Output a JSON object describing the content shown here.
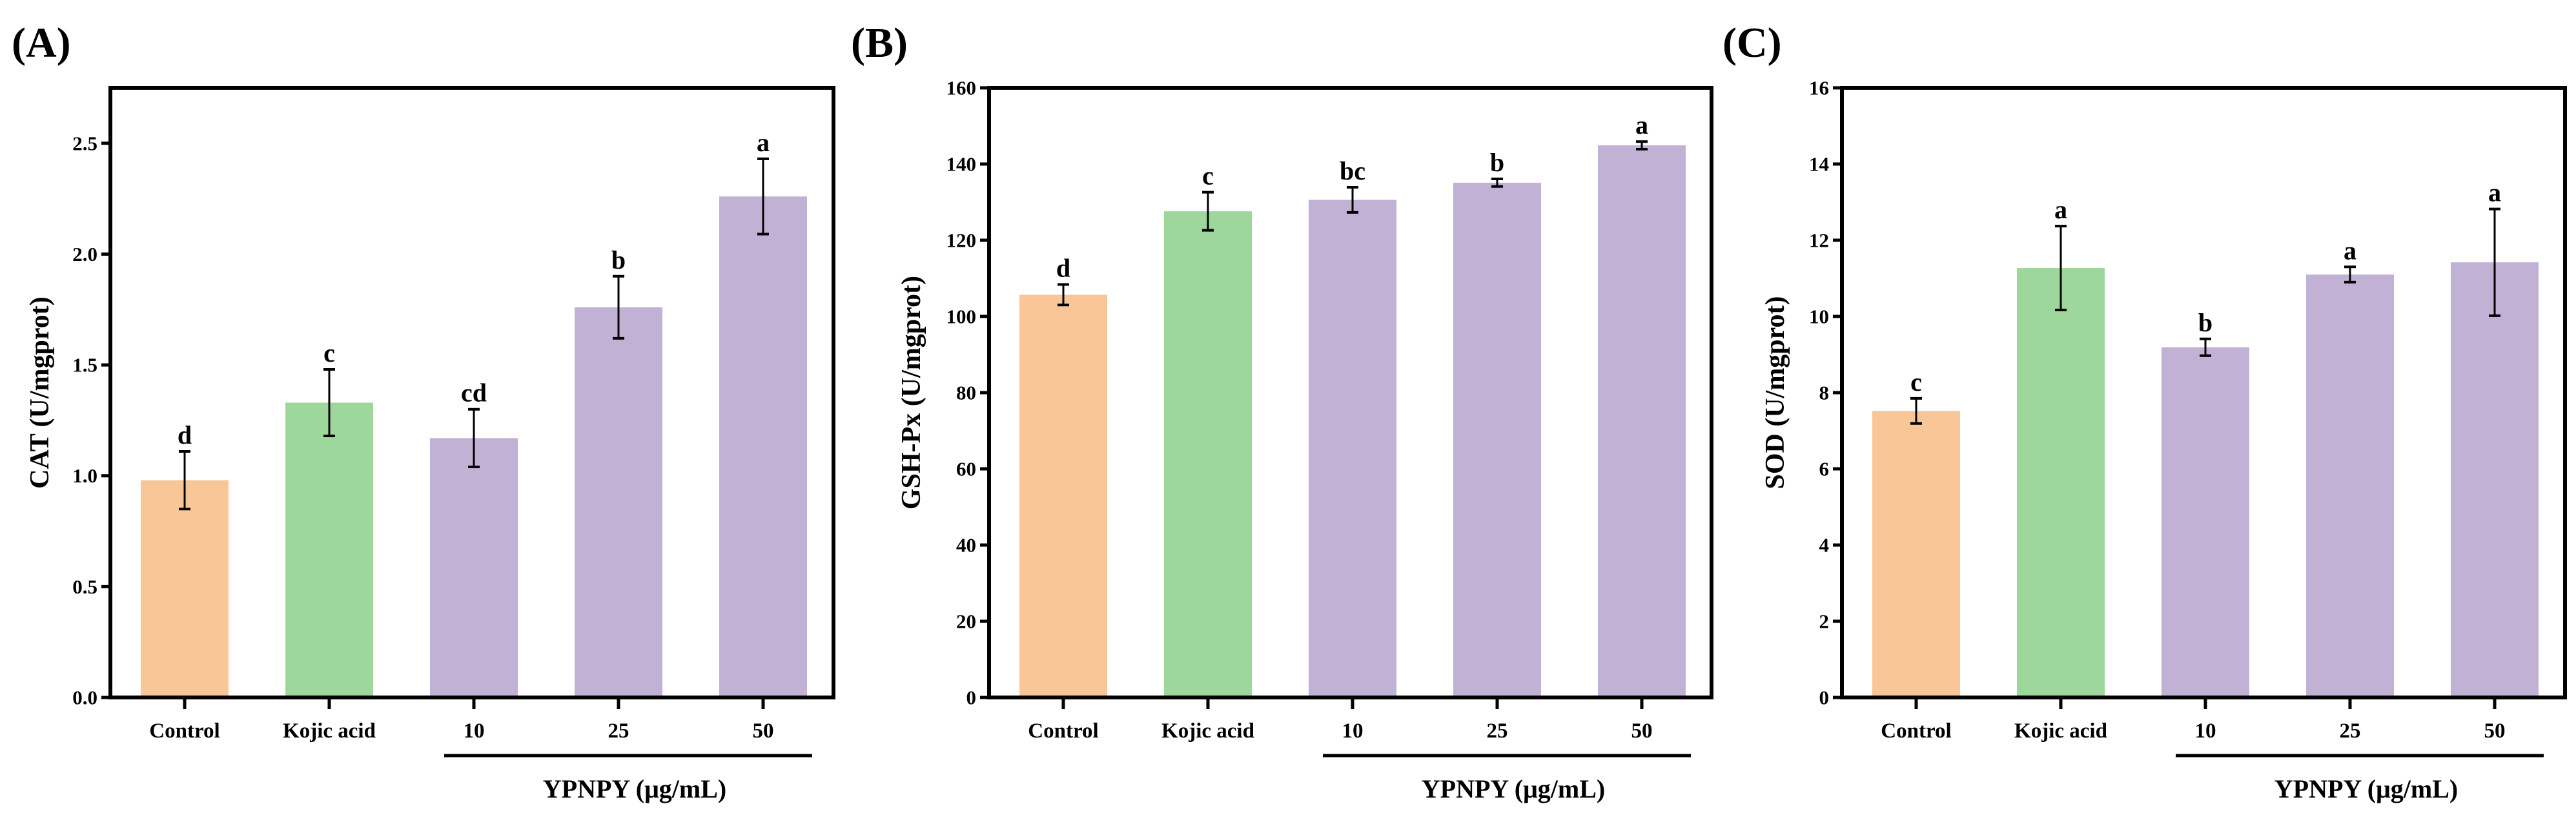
{
  "colors": {
    "control": "#F9C797",
    "kojic": "#9ED79B",
    "ypnpy": "#C1B1D5",
    "axis": "#000000"
  },
  "chart_data": [
    {
      "type": "bar",
      "panel_label": "(A)",
      "ylabel": "CAT (U/mgprot)",
      "xlabel": "",
      "ylim": [
        0,
        2.75
      ],
      "yticks": [
        "0.0",
        "0.5",
        "1.0",
        "1.5",
        "2.0",
        "2.5"
      ],
      "ytick_values": [
        0,
        0.5,
        1.0,
        1.5,
        2.0,
        2.5
      ],
      "categories": [
        "Control",
        "Kojic acid",
        "10",
        "25",
        "50"
      ],
      "values": [
        0.98,
        1.33,
        1.17,
        1.76,
        2.26
      ],
      "errors": [
        0.13,
        0.15,
        0.13,
        0.14,
        0.17
      ],
      "significance": [
        "d",
        "c",
        "cd",
        "b",
        "a"
      ],
      "group_label": "YPNPY (μg/mL)"
    },
    {
      "type": "bar",
      "panel_label": "(B)",
      "ylabel": "GSH-Px (U/mgprot)",
      "xlabel": "",
      "ylim": [
        0,
        160
      ],
      "yticks": [
        "0",
        "20",
        "40",
        "60",
        "80",
        "100",
        "120",
        "140",
        "160"
      ],
      "ytick_values": [
        0,
        20,
        40,
        60,
        80,
        100,
        120,
        140,
        160
      ],
      "categories": [
        "Control",
        "Kojic acid",
        "10",
        "25",
        "50"
      ],
      "values": [
        105.7,
        127.6,
        130.6,
        135.1,
        144.9
      ],
      "errors": [
        2.7,
        5.0,
        3.3,
        1.0,
        1.0
      ],
      "significance": [
        "d",
        "c",
        "bc",
        "b",
        "a"
      ],
      "group_label": "YPNPY (μg/mL)"
    },
    {
      "type": "bar",
      "panel_label": "(C)",
      "ylabel": "SOD (U/mgprot)",
      "xlabel": "",
      "ylim": [
        0,
        16
      ],
      "yticks": [
        "0",
        "2",
        "4",
        "6",
        "8",
        "10",
        "12",
        "14",
        "16"
      ],
      "ytick_values": [
        0,
        2,
        4,
        6,
        8,
        10,
        12,
        14,
        16
      ],
      "categories": [
        "Control",
        "Kojic acid",
        "10",
        "25",
        "50"
      ],
      "values": [
        7.52,
        11.27,
        9.19,
        11.1,
        11.42
      ],
      "errors": [
        0.33,
        1.1,
        0.22,
        0.2,
        1.4
      ],
      "significance": [
        "c",
        "a",
        "b",
        "a",
        "a"
      ],
      "group_label": "YPNPY (μg/mL)"
    }
  ]
}
